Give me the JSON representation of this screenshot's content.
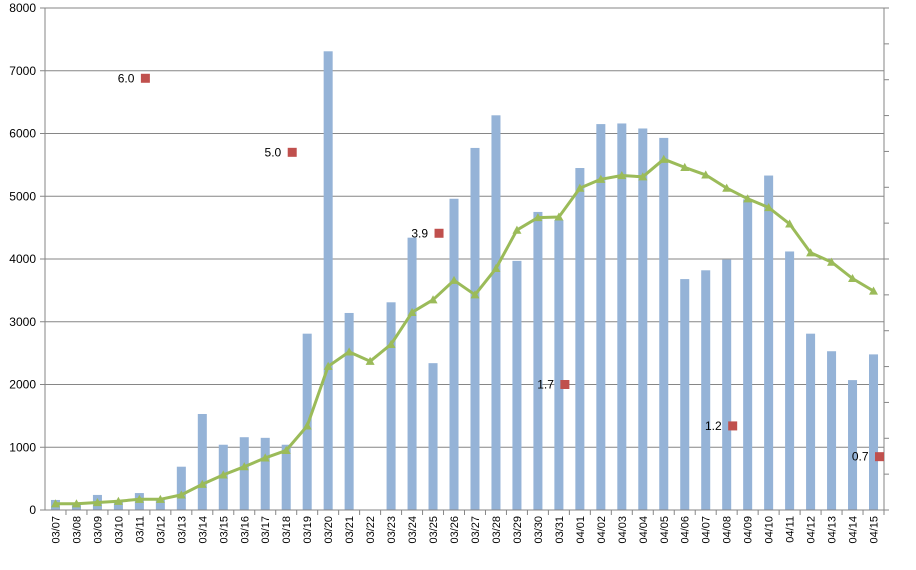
{
  "chart_data": {
    "type": "bar",
    "title": "",
    "xlabel": "",
    "ylabel": "",
    "ylim": [
      0,
      8000
    ],
    "yticks": [
      0,
      1000,
      2000,
      3000,
      4000,
      5000,
      6000,
      7000,
      8000
    ],
    "grid": true,
    "legend": "none",
    "categories": [
      "03/07",
      "03/08",
      "03/09",
      "03/10",
      "03/11",
      "03/12",
      "03/13",
      "03/14",
      "03/15",
      "03/16",
      "03/17",
      "03/18",
      "03/19",
      "03/20",
      "03/21",
      "03/22",
      "03/23",
      "03/24",
      "03/25",
      "03/26",
      "03/27",
      "03/28",
      "03/29",
      "03/30",
      "03/31",
      "04/01",
      "04/02",
      "04/03",
      "04/04",
      "04/05",
      "04/06",
      "04/07",
      "04/08",
      "04/09",
      "04/10",
      "04/11",
      "04/12",
      "04/13",
      "04/14",
      "04/15"
    ],
    "series": [
      {
        "type": "bar",
        "color": "#95B3D7",
        "values": [
          160,
          110,
          240,
          160,
          270,
          170,
          690,
          1530,
          1040,
          1160,
          1150,
          1040,
          2810,
          7310,
          3140,
          0,
          3310,
          4340,
          2340,
          4960,
          5770,
          6290,
          3970,
          4750,
          4620,
          5450,
          6150,
          6160,
          6080,
          5930,
          3680,
          3820,
          3990,
          4950,
          5330,
          4120,
          2810,
          2530,
          2070,
          2480
        ]
      },
      {
        "type": "line",
        "color": "#9BBB59",
        "marker": "triangle",
        "values": [
          100,
          100,
          120,
          140,
          170,
          170,
          240,
          410,
          560,
          690,
          830,
          950,
          1340,
          2290,
          2520,
          2370,
          2640,
          3150,
          3350,
          3660,
          3430,
          3850,
          4460,
          4660,
          4670,
          5130,
          5270,
          5330,
          5310,
          5590,
          5460,
          5340,
          5130,
          4960,
          4820,
          4560,
          4100,
          3950,
          3690,
          3490
        ]
      }
    ],
    "annotations": [
      {
        "category": "03/11",
        "y": 6880,
        "label": "6.0",
        "color": "#C0504D"
      },
      {
        "category": "03/18",
        "y": 5700,
        "label": "5.0",
        "color": "#C0504D"
      },
      {
        "category": "03/25",
        "y": 4410,
        "label": "3.9",
        "color": "#C0504D"
      },
      {
        "category": "03/31",
        "y": 2000,
        "label": "1.7",
        "color": "#C0504D"
      },
      {
        "category": "04/08",
        "y": 1340,
        "label": "1.2",
        "color": "#C0504D"
      },
      {
        "category": "04/15",
        "y": 850,
        "label": "0.7",
        "color": "#C0504D"
      }
    ]
  }
}
